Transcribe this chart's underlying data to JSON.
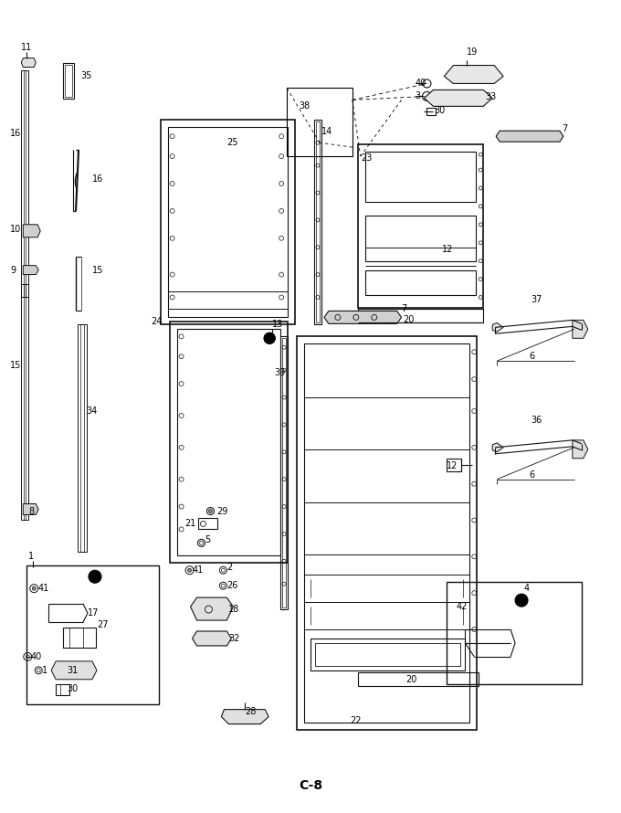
{
  "page_label": "C-8",
  "fig_width": 6.8,
  "fig_height": 8.9,
  "dpi": 100,
  "bg": "#ffffff"
}
